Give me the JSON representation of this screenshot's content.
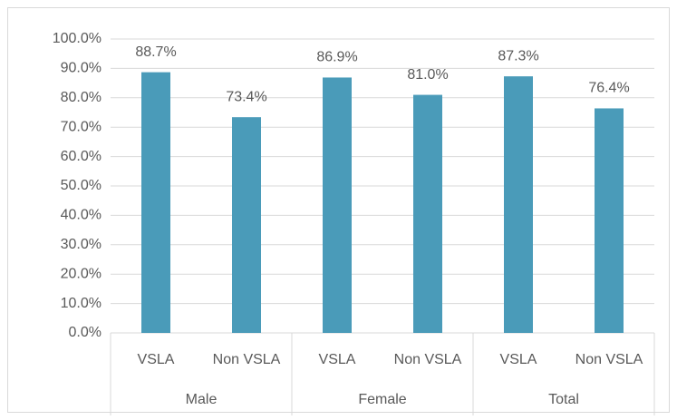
{
  "chart_data": {
    "type": "bar",
    "categories": [
      "VSLA",
      "Non VSLA",
      "VSLA",
      "Non VSLA",
      "VSLA",
      "Non VSLA"
    ],
    "groups": [
      "Male",
      "Female",
      "Total"
    ],
    "values": [
      88.7,
      73.4,
      86.9,
      81.0,
      87.3,
      76.4
    ],
    "value_labels": [
      "88.7%",
      "73.4%",
      "86.9%",
      "81.0%",
      "87.3%",
      "76.4%"
    ],
    "color": "#4a9bb9",
    "ylim": [
      0,
      100
    ],
    "yticks": [
      {
        "value": 0,
        "label": "0.0%"
      },
      {
        "value": 10,
        "label": "10.0%"
      },
      {
        "value": 20,
        "label": "20.0%"
      },
      {
        "value": 30,
        "label": "30.0%"
      },
      {
        "value": 40,
        "label": "40.0%"
      },
      {
        "value": 50,
        "label": "50.0%"
      },
      {
        "value": 60,
        "label": "60.0%"
      },
      {
        "value": 70,
        "label": "70.0%"
      },
      {
        "value": 80,
        "label": "80.0%"
      },
      {
        "value": 90,
        "label": "90.0%"
      },
      {
        "value": 100,
        "label": "100.0%"
      }
    ],
    "grid": true
  }
}
